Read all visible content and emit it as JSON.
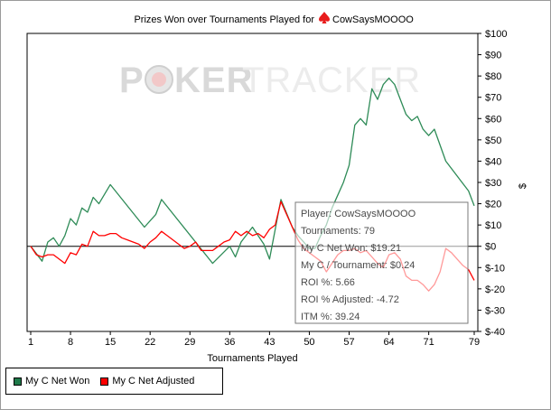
{
  "chart_data": {
    "type": "line",
    "title": "Prizes Won over Tournaments Played for",
    "player_name": "CowSaysMOOOO",
    "xlabel": "Tournaments Played",
    "ylabel": "$",
    "xlim": [
      1,
      79
    ],
    "ylim": [
      -40,
      100
    ],
    "x_ticks": [
      1,
      8,
      15,
      22,
      29,
      36,
      43,
      50,
      57,
      64,
      71,
      79
    ],
    "y_ticks": [
      -40,
      -30,
      -20,
      -10,
      0,
      10,
      20,
      30,
      40,
      50,
      60,
      70,
      80,
      90,
      100
    ],
    "y_tick_labels": [
      "$-40",
      "$-30",
      "$-20",
      "$-10",
      "$0",
      "$10",
      "$20",
      "$30",
      "$40",
      "$50",
      "$60",
      "$70",
      "$80",
      "$90",
      "$100"
    ],
    "grid": false,
    "legend_position": "bottom-left",
    "series": [
      {
        "name": "My C Net Won",
        "color": "#2e8b57",
        "points": [
          [
            1,
            0
          ],
          [
            3,
            -7
          ],
          [
            4,
            2
          ],
          [
            5,
            4
          ],
          [
            6,
            0
          ],
          [
            7,
            5
          ],
          [
            8,
            13
          ],
          [
            9,
            10
          ],
          [
            10,
            18
          ],
          [
            11,
            16
          ],
          [
            12,
            23
          ],
          [
            13,
            20
          ],
          [
            15,
            29
          ],
          [
            21,
            9
          ],
          [
            23,
            15
          ],
          [
            24,
            22
          ],
          [
            33,
            -8
          ],
          [
            36,
            0
          ],
          [
            37,
            -5
          ],
          [
            38,
            2
          ],
          [
            40,
            9
          ],
          [
            42,
            1
          ],
          [
            43,
            -6
          ],
          [
            45,
            22
          ],
          [
            47,
            9
          ],
          [
            48,
            5
          ],
          [
            49,
            2
          ],
          [
            50,
            -1
          ],
          [
            51,
            -1
          ],
          [
            52,
            5
          ],
          [
            53,
            10
          ],
          [
            54,
            18
          ],
          [
            56,
            30
          ],
          [
            57,
            38
          ],
          [
            58,
            57
          ],
          [
            59,
            60
          ],
          [
            60,
            57
          ],
          [
            61,
            74
          ],
          [
            62,
            69
          ],
          [
            63,
            76
          ],
          [
            64,
            79
          ],
          [
            65,
            76
          ],
          [
            66,
            69
          ],
          [
            67,
            62
          ],
          [
            68,
            59
          ],
          [
            69,
            61
          ],
          [
            70,
            55
          ],
          [
            71,
            52
          ],
          [
            72,
            55
          ],
          [
            74,
            40
          ],
          [
            78,
            26
          ],
          [
            79,
            19
          ]
        ]
      },
      {
        "name": "My C Net Adjusted",
        "color": "#ff0000",
        "points": [
          [
            1,
            0
          ],
          [
            2,
            -4
          ],
          [
            3,
            -5
          ],
          [
            4,
            -4
          ],
          [
            5,
            -4
          ],
          [
            6,
            -6
          ],
          [
            7,
            -8
          ],
          [
            8,
            -3
          ],
          [
            9,
            -4
          ],
          [
            10,
            1
          ],
          [
            11,
            0
          ],
          [
            12,
            7
          ],
          [
            13,
            5
          ],
          [
            14,
            5
          ],
          [
            15,
            6
          ],
          [
            16,
            6
          ],
          [
            17,
            4
          ],
          [
            18,
            3
          ],
          [
            19,
            2
          ],
          [
            20,
            1
          ],
          [
            21,
            -1
          ],
          [
            22,
            2
          ],
          [
            23,
            4
          ],
          [
            24,
            7
          ],
          [
            25,
            5
          ],
          [
            26,
            3
          ],
          [
            27,
            1
          ],
          [
            28,
            -1
          ],
          [
            29,
            0
          ],
          [
            30,
            2
          ],
          [
            31,
            -2
          ],
          [
            32,
            -2
          ],
          [
            33,
            -2
          ],
          [
            34,
            0
          ],
          [
            35,
            2
          ],
          [
            36,
            3
          ],
          [
            37,
            7
          ],
          [
            38,
            5
          ],
          [
            39,
            7
          ],
          [
            40,
            5
          ],
          [
            41,
            6
          ],
          [
            42,
            4
          ],
          [
            43,
            8
          ],
          [
            44,
            10
          ],
          [
            45,
            21
          ],
          [
            46,
            15
          ],
          [
            47,
            9
          ],
          [
            48,
            3
          ],
          [
            49,
            -1
          ],
          [
            50,
            -3
          ],
          [
            51,
            -5
          ],
          [
            52,
            -7
          ],
          [
            53,
            -12
          ],
          [
            54,
            -8
          ],
          [
            55,
            -4
          ],
          [
            56,
            -2
          ],
          [
            57,
            -2
          ],
          [
            58,
            -1
          ],
          [
            59,
            -3
          ],
          [
            60,
            -2
          ],
          [
            61,
            -5
          ],
          [
            62,
            -8
          ],
          [
            63,
            -10
          ],
          [
            64,
            -4
          ],
          [
            65,
            -3
          ],
          [
            66,
            -6
          ],
          [
            67,
            -14
          ],
          [
            68,
            -16
          ],
          [
            69,
            -16
          ],
          [
            70,
            -18
          ],
          [
            71,
            -21
          ],
          [
            72,
            -18
          ],
          [
            73,
            -12
          ],
          [
            74,
            -1
          ],
          [
            75,
            -3
          ],
          [
            76,
            -6
          ],
          [
            77,
            -9
          ],
          [
            78,
            -11
          ],
          [
            79,
            -16
          ]
        ]
      }
    ]
  },
  "watermark": {
    "text_left": "P",
    "text_mid": "KER",
    "text_right": "TRACKER"
  },
  "tooltip": {
    "lines": [
      "Player: CowSaysMOOOO",
      "Tournaments: 79",
      "My C Net Won: $19.21",
      "My C / Tournament: $0.24",
      "ROI %: 5.66",
      "ROI % Adjusted: -4.72",
      "ITM %: 39.24"
    ]
  },
  "legend": [
    {
      "label": "My C Net Won",
      "color": "#1f7a4a"
    },
    {
      "label": "My C Net Adjusted",
      "color": "#ff0000"
    }
  ]
}
